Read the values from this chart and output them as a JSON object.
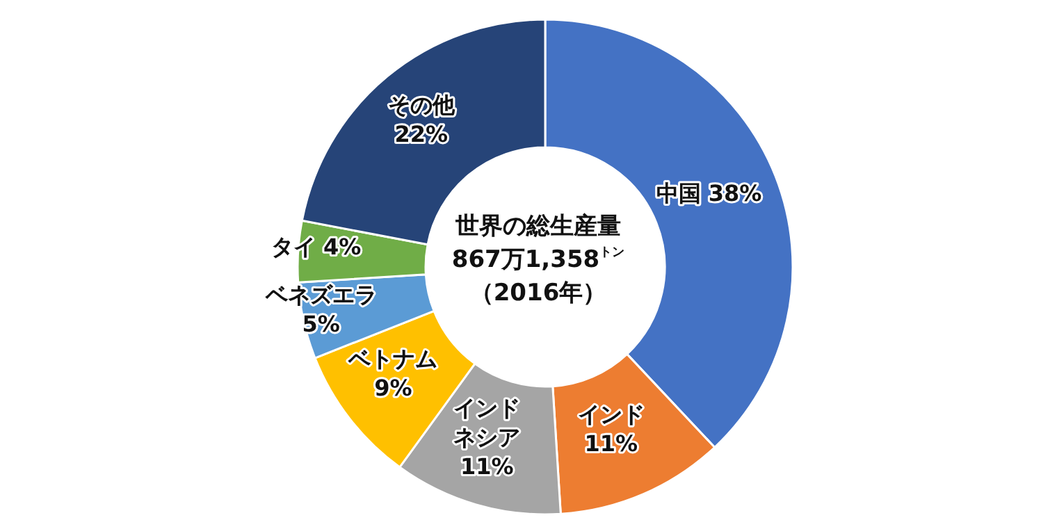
{
  "chart_data": {
    "type": "donut",
    "categories": [
      "中国",
      "インド",
      "インドネシア",
      "ベトナム",
      "ベネズエラ",
      "タイ",
      "その他"
    ],
    "values": [
      38,
      11,
      11,
      9,
      5,
      4,
      22
    ],
    "value_labels": [
      "38%",
      "11%",
      "11%",
      "9%",
      "5%",
      "4%",
      "22%"
    ],
    "colors": [
      "#4472c4",
      "#ed7d31",
      "#a5a5a5",
      "#ffc000",
      "#5b9bd5",
      "#70ad47",
      "#264478"
    ],
    "annotations": [
      "世界の総生産量",
      "867万1,358$^{トン}$",
      "（2016年）"
    ],
    "legend": false
  }
}
